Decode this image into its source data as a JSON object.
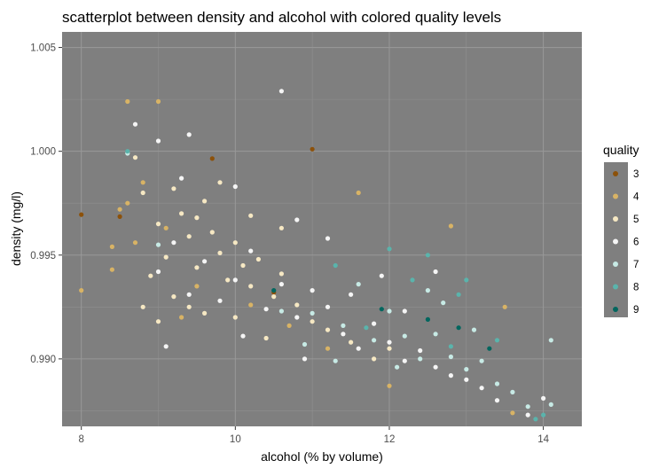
{
  "chart_data": {
    "type": "scatter",
    "title": "scatterplot between density and alcohol with colored quality levels",
    "xlabel": "alcohol (% by volume)",
    "ylabel": "density (mg/l)",
    "xlim": [
      7.75,
      14.5
    ],
    "ylim": [
      0.98675,
      1.00575
    ],
    "xticks": [
      8,
      10,
      12,
      14
    ],
    "xtick_labels": [
      "8",
      "10",
      "12",
      "14"
    ],
    "yticks": [
      0.99,
      0.995,
      1.0,
      1.005
    ],
    "ytick_labels": [
      "0.990",
      "0.995",
      "1.000",
      "1.005"
    ],
    "grid": true,
    "panel_background": "#7f7f7f",
    "legend": {
      "title": "quality",
      "position": "right",
      "background": "#7f7f7f",
      "entries": [
        "3",
        "4",
        "5",
        "6",
        "7",
        "8",
        "9"
      ]
    },
    "series": [
      {
        "name": "3",
        "color": "#8c510a",
        "points": [
          [
            8.0,
            0.99695
          ],
          [
            8.5,
            0.99685
          ],
          [
            9.7,
            0.99965
          ],
          [
            11.0,
            1.0001
          ],
          [
            10.5,
            0.9932
          ]
        ]
      },
      {
        "name": "4",
        "color": "#d8b365",
        "points": [
          [
            8.0,
            0.9933
          ],
          [
            8.4,
            0.9954
          ],
          [
            8.4,
            0.9943
          ],
          [
            8.5,
            0.9972
          ],
          [
            8.6,
            1.0024
          ],
          [
            8.8,
            0.9985
          ],
          [
            8.6,
            0.9975
          ],
          [
            9.0,
            1.0024
          ],
          [
            9.3,
            0.992
          ],
          [
            9.5,
            0.9935
          ],
          [
            10.2,
            0.9926
          ],
          [
            10.7,
            0.9916
          ],
          [
            11.6,
            0.998
          ],
          [
            12.8,
            0.9964
          ],
          [
            13.5,
            0.9925
          ],
          [
            13.6,
            0.9874
          ],
          [
            8.7,
            0.9956
          ],
          [
            9.1,
            0.9963
          ],
          [
            11.2,
            0.9905
          ],
          [
            12.0,
            0.9887
          ]
        ]
      },
      {
        "name": "5",
        "color": "#f6e8c3",
        "points": [
          [
            8.7,
            0.9997
          ],
          [
            8.8,
            0.998
          ],
          [
            9.0,
            0.9965
          ],
          [
            9.1,
            0.9949
          ],
          [
            9.2,
            0.9982
          ],
          [
            9.3,
            0.997
          ],
          [
            9.4,
            0.9959
          ],
          [
            9.5,
            0.9944
          ],
          [
            9.6,
            0.9976
          ],
          [
            9.7,
            0.9961
          ],
          [
            9.8,
            0.9951
          ],
          [
            9.9,
            0.9938
          ],
          [
            10.0,
            0.9956
          ],
          [
            10.1,
            0.9945
          ],
          [
            10.2,
            0.9935
          ],
          [
            10.3,
            0.9948
          ],
          [
            10.5,
            0.993
          ],
          [
            10.6,
            0.9941
          ],
          [
            10.8,
            0.9926
          ],
          [
            11.0,
            0.9918
          ],
          [
            11.2,
            0.9914
          ],
          [
            11.5,
            0.9908
          ],
          [
            9.2,
            0.993
          ],
          [
            9.4,
            0.9925
          ],
          [
            9.0,
            0.9918
          ],
          [
            8.9,
            0.994
          ],
          [
            9.6,
            0.9922
          ],
          [
            10.0,
            0.992
          ],
          [
            10.4,
            0.991
          ],
          [
            9.8,
            0.9985
          ],
          [
            10.2,
            0.9969
          ],
          [
            8.8,
            0.9925
          ],
          [
            9.5,
            0.9968
          ],
          [
            10.6,
            0.9963
          ],
          [
            11.8,
            0.99
          ],
          [
            12.0,
            0.9905
          ]
        ]
      },
      {
        "name": "6",
        "color": "#f5f5f5",
        "points": [
          [
            9.0,
            0.9942
          ],
          [
            9.2,
            0.9956
          ],
          [
            9.4,
            0.9931
          ],
          [
            9.6,
            0.9947
          ],
          [
            9.8,
            0.9928
          ],
          [
            10.0,
            0.9938
          ],
          [
            10.2,
            0.9952
          ],
          [
            10.4,
            0.9924
          ],
          [
            10.6,
            0.9936
          ],
          [
            10.8,
            0.992
          ],
          [
            11.0,
            0.9933
          ],
          [
            11.2,
            0.9925
          ],
          [
            11.4,
            0.9912
          ],
          [
            11.6,
            0.9905
          ],
          [
            11.8,
            0.9917
          ],
          [
            12.0,
            0.9908
          ],
          [
            12.2,
            0.9899
          ],
          [
            12.4,
            0.9904
          ],
          [
            12.6,
            0.9896
          ],
          [
            12.8,
            0.9892
          ],
          [
            13.0,
            0.989
          ],
          [
            13.2,
            0.9886
          ],
          [
            13.4,
            0.988
          ],
          [
            13.8,
            0.9873
          ],
          [
            14.0,
            0.9881
          ],
          [
            10.6,
            1.0029
          ],
          [
            8.7,
            1.0013
          ],
          [
            9.0,
            1.0005
          ],
          [
            9.4,
            1.0008
          ],
          [
            10.0,
            0.9983
          ],
          [
            10.8,
            0.9967
          ],
          [
            11.2,
            0.9958
          ],
          [
            12.6,
            0.9942
          ],
          [
            9.1,
            0.9906
          ],
          [
            10.1,
            0.9911
          ],
          [
            11.5,
            0.9931
          ],
          [
            12.2,
            0.9923
          ],
          [
            10.9,
            0.99
          ],
          [
            9.3,
            0.9987
          ],
          [
            11.9,
            0.994
          ]
        ]
      },
      {
        "name": "7",
        "color": "#c7eae5",
        "points": [
          [
            10.6,
            0.9923
          ],
          [
            11.0,
            0.9922
          ],
          [
            11.4,
            0.9916
          ],
          [
            11.8,
            0.9909
          ],
          [
            12.0,
            0.9923
          ],
          [
            12.2,
            0.9911
          ],
          [
            12.4,
            0.99
          ],
          [
            12.6,
            0.9912
          ],
          [
            12.8,
            0.9901
          ],
          [
            13.0,
            0.9895
          ],
          [
            13.2,
            0.9899
          ],
          [
            13.4,
            0.9888
          ],
          [
            13.6,
            0.9884
          ],
          [
            13.8,
            0.9877
          ],
          [
            14.1,
            0.9909
          ],
          [
            12.5,
            0.9933
          ],
          [
            11.6,
            0.9936
          ],
          [
            10.9,
            0.9907
          ],
          [
            12.1,
            0.9896
          ],
          [
            13.1,
            0.9914
          ],
          [
            14.1,
            0.9878
          ],
          [
            8.6,
            0.9999
          ],
          [
            9.0,
            0.9955
          ],
          [
            12.7,
            0.9927
          ],
          [
            11.3,
            0.9899
          ]
        ]
      },
      {
        "name": "8",
        "color": "#5ab4ac",
        "points": [
          [
            8.6,
            1.0
          ],
          [
            12.0,
            0.9953
          ],
          [
            12.5,
            0.995
          ],
          [
            11.3,
            0.9945
          ],
          [
            12.9,
            0.9931
          ],
          [
            13.4,
            0.9909
          ],
          [
            13.9,
            0.9871
          ],
          [
            12.8,
            0.9906
          ],
          [
            12.3,
            0.9938
          ],
          [
            11.7,
            0.9915
          ],
          [
            13.0,
            0.9938
          ],
          [
            14.0,
            0.9873
          ]
        ]
      },
      {
        "name": "9",
        "color": "#01665e",
        "points": [
          [
            12.5,
            0.9919
          ],
          [
            12.9,
            0.9915
          ],
          [
            10.5,
            0.9933
          ],
          [
            11.9,
            0.9924
          ],
          [
            13.3,
            0.9905
          ]
        ]
      }
    ]
  }
}
